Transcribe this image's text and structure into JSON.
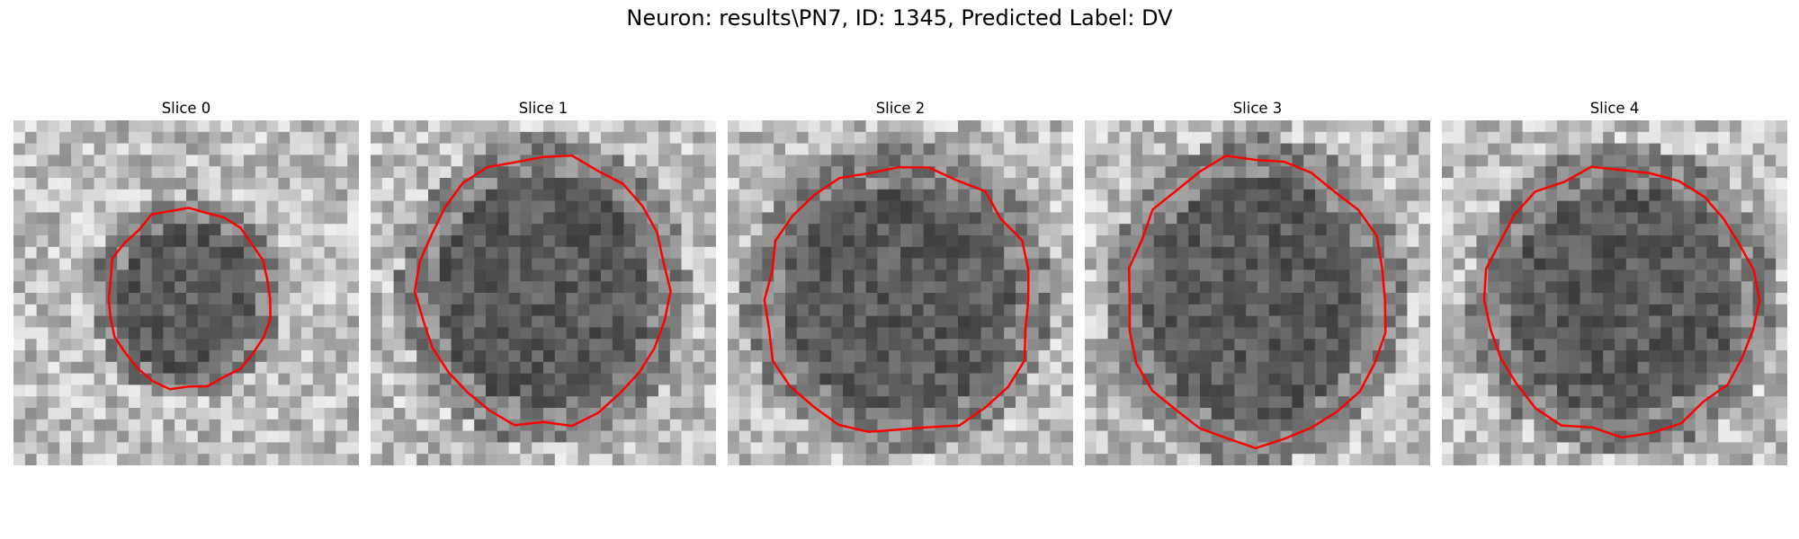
{
  "figure": {
    "title": "Neuron: results\\PN7, ID: 1345, Predicted Label: DV"
  },
  "slices": [
    {
      "title": "Slice 0"
    },
    {
      "title": "Slice 1"
    },
    {
      "title": "Slice 2"
    },
    {
      "title": "Slice 3"
    },
    {
      "title": "Slice 4"
    }
  ],
  "colors": {
    "contour": "#ff0000",
    "background": "#ffffff"
  }
}
